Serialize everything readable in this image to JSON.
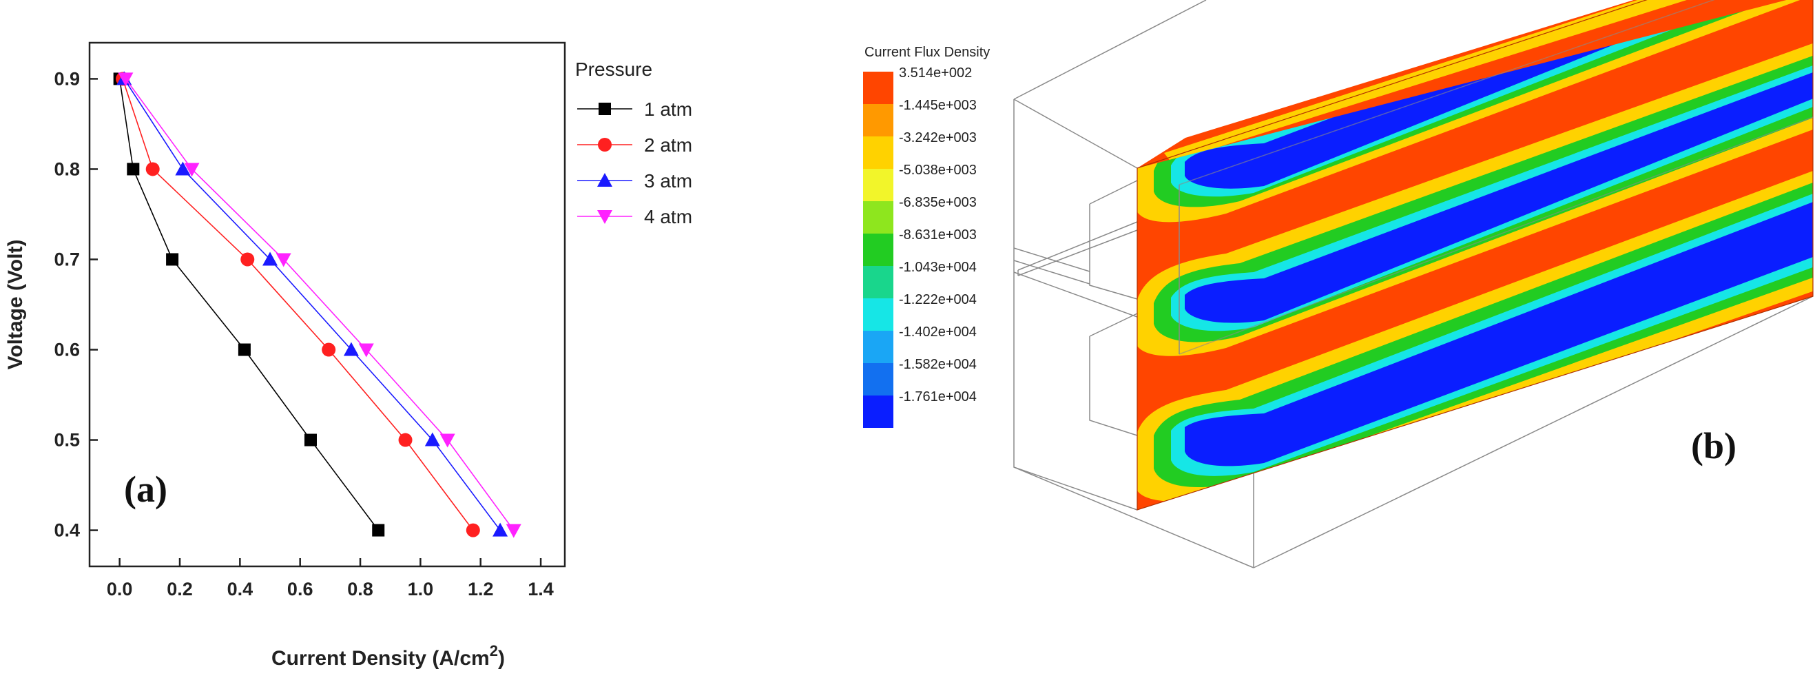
{
  "chart_data": [
    {
      "type": "line",
      "panel_label": "(a)",
      "title": "",
      "xlabel": "Current Density (A/cm",
      "xlabel_superscript": "2",
      "xlabel_suffix": ")",
      "ylabel": "Voltage (Volt)",
      "xlim": [
        -0.1,
        1.48
      ],
      "ylim": [
        0.36,
        0.94
      ],
      "x_ticks": [
        0.0,
        0.2,
        0.4,
        0.6,
        0.8,
        1.0,
        1.2,
        1.4
      ],
      "x_tick_labels": [
        "0.0",
        "0.2",
        "0.4",
        "0.6",
        "0.8",
        "1.0",
        "1.2",
        "1.4"
      ],
      "y_ticks": [
        0.4,
        0.5,
        0.6,
        0.7,
        0.8,
        0.9
      ],
      "y_tick_labels": [
        "0.4",
        "0.5",
        "0.6",
        "0.7",
        "0.8",
        "0.9"
      ],
      "legend_title": "Pressure",
      "legend_position": "top-right",
      "series": [
        {
          "name": "1 atm",
          "marker": "square",
          "color": "#000000",
          "x": [
            0.0,
            0.045,
            0.175,
            0.415,
            0.635,
            0.86
          ],
          "y": [
            0.9,
            0.8,
            0.7,
            0.6,
            0.5,
            0.4
          ]
        },
        {
          "name": "2 atm",
          "marker": "circle",
          "color": "#ff2020",
          "x": [
            0.01,
            0.11,
            0.425,
            0.695,
            0.95,
            1.175
          ],
          "y": [
            0.9,
            0.8,
            0.7,
            0.6,
            0.5,
            0.4
          ]
        },
        {
          "name": "3 atm",
          "marker": "triangle-up",
          "color": "#1a1aff",
          "x": [
            0.015,
            0.21,
            0.5,
            0.77,
            1.04,
            1.265
          ],
          "y": [
            0.9,
            0.8,
            0.7,
            0.6,
            0.5,
            0.4
          ]
        },
        {
          "name": "4 atm",
          "marker": "triangle-down",
          "color": "#ff22ff",
          "x": [
            0.02,
            0.24,
            0.545,
            0.82,
            1.09,
            1.31
          ],
          "y": [
            0.9,
            0.8,
            0.7,
            0.6,
            0.5,
            0.4
          ]
        }
      ]
    },
    {
      "type": "heatmap",
      "panel_label": "(b)",
      "title": "Current Flux Density",
      "colorbar_labels": [
        "3.514e+002",
        "-1.445e+003",
        "-3.242e+003",
        "-5.038e+003",
        "-6.835e+003",
        "-8.631e+003",
        "-1.043e+004",
        "-1.222e+004",
        "-1.402e+004",
        "-1.582e+004",
        "-1.761e+004"
      ],
      "colorbar_colors": [
        "#ff4500",
        "#ff9900",
        "#ffd200",
        "#f2f52a",
        "#8ee61e",
        "#22cc22",
        "#19d68c",
        "#16e6e6",
        "#1aa6f5",
        "#1270f0",
        "#0a1eff"
      ]
    }
  ]
}
